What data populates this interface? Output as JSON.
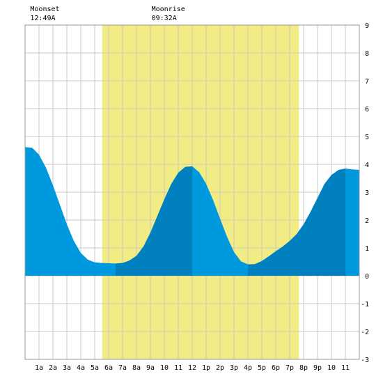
{
  "chart_data": {
    "type": "area",
    "title": "",
    "xlabel": "",
    "ylabel": "",
    "ylim": [
      -3,
      9
    ],
    "xlim": [
      0,
      24
    ],
    "grid": true,
    "y_ticks": [
      "-3",
      "-2",
      "-1",
      "0",
      "1",
      "2",
      "3",
      "4",
      "5",
      "6",
      "7",
      "8",
      "9"
    ],
    "x_tick_labels": [
      "1a",
      "2a",
      "3a",
      "4a",
      "5a",
      "6a",
      "7a",
      "8a",
      "9a",
      "10",
      "11",
      "12",
      "1p",
      "2p",
      "3p",
      "4p",
      "5p",
      "6p",
      "7p",
      "8p",
      "9p",
      "10",
      "11"
    ],
    "daylight": [
      5.53,
      19.67
    ],
    "moon_events": [
      {
        "label": "Moonset",
        "time": "12:49A",
        "hour": 0.82
      },
      {
        "label": "Moonrise",
        "time": "09:32A",
        "hour": 9.53
      }
    ],
    "series": [
      {
        "values": [
          [
            0.0,
            4.62
          ],
          [
            0.5,
            4.6
          ],
          [
            1.0,
            4.35
          ],
          [
            1.5,
            3.88
          ],
          [
            2.0,
            3.25
          ],
          [
            2.5,
            2.55
          ],
          [
            3.0,
            1.85
          ],
          [
            3.5,
            1.25
          ],
          [
            4.0,
            0.82
          ],
          [
            4.5,
            0.58
          ],
          [
            5.0,
            0.48
          ],
          [
            5.5,
            0.46
          ],
          [
            6.0,
            0.45
          ],
          [
            6.5,
            0.44
          ],
          [
            7.0,
            0.46
          ],
          [
            7.5,
            0.55
          ],
          [
            8.0,
            0.72
          ],
          [
            8.5,
            1.05
          ],
          [
            9.0,
            1.55
          ],
          [
            9.5,
            2.15
          ],
          [
            10.0,
            2.75
          ],
          [
            10.5,
            3.3
          ],
          [
            11.0,
            3.7
          ],
          [
            11.5,
            3.91
          ],
          [
            12.0,
            3.93
          ],
          [
            12.5,
            3.72
          ],
          [
            13.0,
            3.3
          ],
          [
            13.5,
            2.72
          ],
          [
            14.0,
            2.05
          ],
          [
            14.5,
            1.4
          ],
          [
            15.0,
            0.85
          ],
          [
            15.5,
            0.52
          ],
          [
            16.0,
            0.41
          ],
          [
            16.5,
            0.42
          ],
          [
            17.0,
            0.53
          ],
          [
            17.5,
            0.7
          ],
          [
            18.0,
            0.88
          ],
          [
            18.5,
            1.05
          ],
          [
            19.0,
            1.25
          ],
          [
            19.5,
            1.5
          ],
          [
            20.0,
            1.85
          ],
          [
            20.5,
            2.3
          ],
          [
            21.0,
            2.8
          ],
          [
            21.5,
            3.3
          ],
          [
            22.0,
            3.62
          ],
          [
            22.5,
            3.8
          ],
          [
            23.0,
            3.85
          ],
          [
            23.5,
            3.82
          ],
          [
            24.0,
            3.8
          ]
        ],
        "color_rising": "#0080bf",
        "color_falling": "#0099dd"
      }
    ],
    "colors": {
      "daylight": "#f2ec85",
      "grid": "#c8c8c8",
      "frame": "#999999",
      "background": "#ffffff"
    }
  }
}
